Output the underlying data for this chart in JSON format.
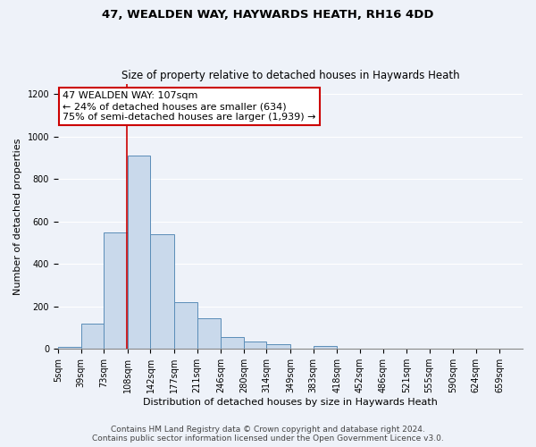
{
  "title1": "47, WEALDEN WAY, HAYWARDS HEATH, RH16 4DD",
  "title2": "Size of property relative to detached houses in Haywards Heath",
  "xlabel": "Distribution of detached houses by size in Haywards Heath",
  "ylabel": "Number of detached properties",
  "annotation_line1": "47 WEALDEN WAY: 107sqm",
  "annotation_line2": "← 24% of detached houses are smaller (634)",
  "annotation_line3": "75% of semi-detached houses are larger (1,939) →",
  "footnote1": "Contains HM Land Registry data © Crown copyright and database right 2024.",
  "footnote2": "Contains public sector information licensed under the Open Government Licence v3.0.",
  "bar_edges": [
    5,
    39,
    73,
    108,
    142,
    177,
    211,
    246,
    280,
    314,
    349,
    383,
    418,
    452,
    486,
    521,
    555,
    590,
    624,
    659,
    693
  ],
  "bar_heights": [
    10,
    120,
    550,
    910,
    540,
    220,
    145,
    55,
    35,
    20,
    2,
    15,
    2,
    2,
    2,
    2,
    2,
    2,
    2,
    2
  ],
  "bar_color": "#c9d9eb",
  "bar_edge_color": "#5b8db8",
  "property_line_x": 107,
  "property_line_color": "#cc0000",
  "annotation_box_color": "#cc0000",
  "background_color": "#eef2f9",
  "ylim": [
    0,
    1250
  ],
  "yticks": [
    0,
    200,
    400,
    600,
    800,
    1000,
    1200
  ],
  "grid_color": "#ffffff",
  "title1_fontsize": 9.5,
  "title2_fontsize": 8.5,
  "xlabel_fontsize": 8,
  "ylabel_fontsize": 8,
  "tick_fontsize": 7,
  "annotation_fontsize": 8,
  "footnote_fontsize": 6.5
}
